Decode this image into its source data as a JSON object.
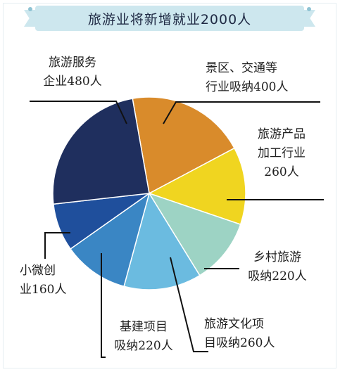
{
  "chart_data": {
    "type": "pie",
    "title": "旅游业将新增就业2000人",
    "total": 2000,
    "unit": "人",
    "slices": [
      {
        "label_lines": [
          "景区、交通等",
          "行业吸纳400人"
        ],
        "value": 400,
        "color": "#d98b2b"
      },
      {
        "label_lines": [
          "旅游产品",
          "加工行业",
          "260人"
        ],
        "value": 260,
        "color": "#f0d520"
      },
      {
        "label_lines": [
          "乡村旅游",
          "吸纳220人"
        ],
        "value": 220,
        "color": "#9dd3c4"
      },
      {
        "label_lines": [
          "旅游文化项",
          "目吸纳260人"
        ],
        "value": 260,
        "color": "#6bbbe0"
      },
      {
        "label_lines": [
          "基建项目",
          "吸纳220人"
        ],
        "value": 220,
        "color": "#3a86c4"
      },
      {
        "label_lines": [
          "小微创",
          "业160人"
        ],
        "value": 160,
        "color": "#1f4f9c"
      },
      {
        "label_lines": [
          "旅游服务",
          "企业480人"
        ],
        "value": 480,
        "color": "#1f2f5e"
      }
    ]
  }
}
